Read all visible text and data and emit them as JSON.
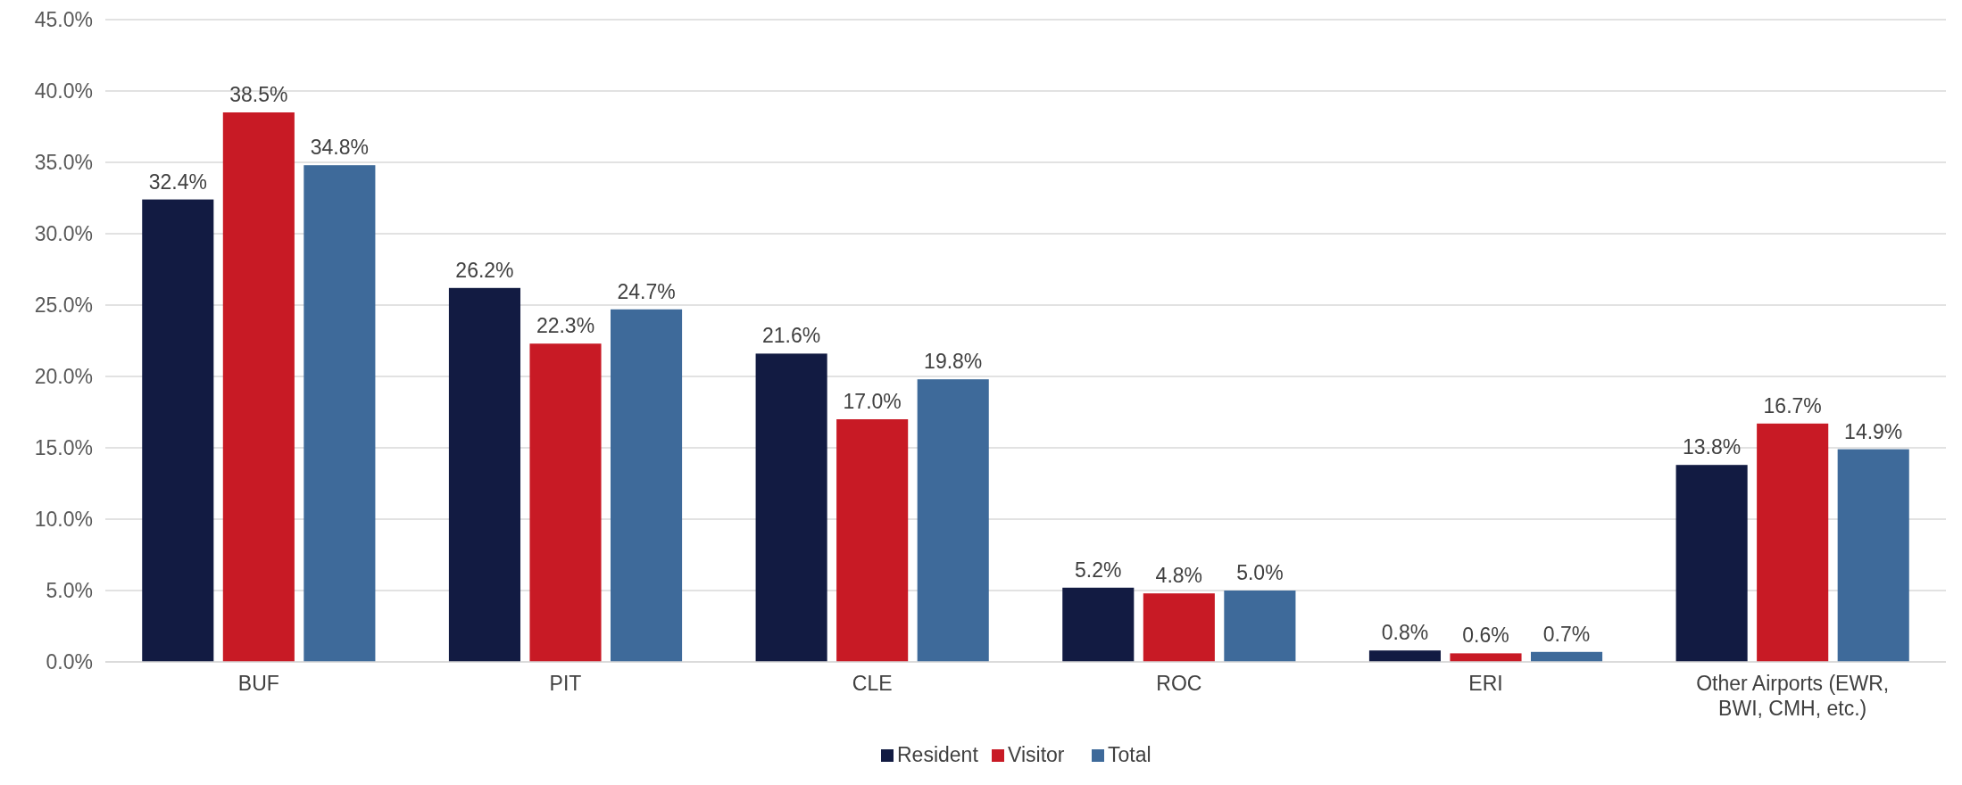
{
  "chart_data": {
    "type": "bar",
    "categories": [
      "BUF",
      "PIT",
      "CLE",
      "ROC",
      "ERI",
      "Other Airports (EWR, BWI, CMH, etc.)"
    ],
    "series": [
      {
        "name": "Resident",
        "color": "#121b42",
        "values": [
          32.4,
          26.2,
          21.6,
          5.2,
          0.8,
          13.8
        ],
        "value_labels": [
          "32.4%",
          "26.2%",
          "21.6%",
          "5.2%",
          "0.8%",
          "13.8%"
        ]
      },
      {
        "name": "Visitor",
        "color": "#c81a25",
        "values": [
          38.5,
          22.3,
          17.0,
          4.8,
          0.6,
          16.7
        ],
        "value_labels": [
          "38.5%",
          "22.3%",
          "17.0%",
          "4.8%",
          "0.6%",
          "16.7%"
        ]
      },
      {
        "name": "Total",
        "color": "#3e6a9a",
        "values": [
          34.8,
          24.7,
          19.8,
          5.0,
          0.7,
          14.9
        ],
        "value_labels": [
          "34.8%",
          "24.7%",
          "19.8%",
          "5.0%",
          "0.7%",
          "14.9%"
        ]
      }
    ],
    "ylim": [
      0,
      45
    ],
    "yticks": [
      {
        "value": 0,
        "label": "0.0%"
      },
      {
        "value": 5,
        "label": "5.0%"
      },
      {
        "value": 10,
        "label": "10.0%"
      },
      {
        "value": 15,
        "label": "15.0%"
      },
      {
        "value": 20,
        "label": "20.0%"
      },
      {
        "value": 25,
        "label": "25.0%"
      },
      {
        "value": 30,
        "label": "30.0%"
      },
      {
        "value": 35,
        "label": "35.0%"
      },
      {
        "value": 40,
        "label": "40.0%"
      },
      {
        "value": 45,
        "label": "45.0%"
      }
    ],
    "grid": "y",
    "legend": "bottom"
  }
}
